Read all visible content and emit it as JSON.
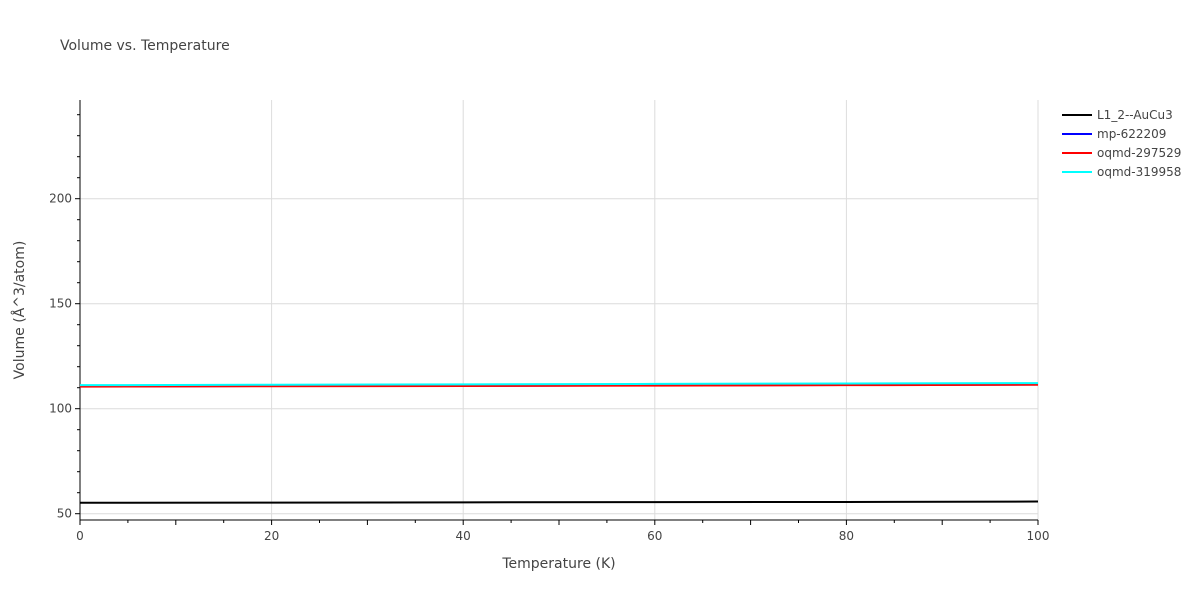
{
  "chart_data": {
    "type": "line",
    "title": "Volume vs. Temperature",
    "xlabel": "Temperature (K)",
    "ylabel": "Volume (Å^3/atom)",
    "xlim": [
      0,
      100
    ],
    "ylim": [
      47,
      247
    ],
    "xticks": [
      0,
      20,
      40,
      60,
      80,
      100
    ],
    "yticks": [
      50,
      100,
      150,
      200
    ],
    "grid": true,
    "legend_position": "top-right",
    "series": [
      {
        "name": "L1_2--AuCu3",
        "color": "#000000",
        "x": [
          0,
          20,
          40,
          60,
          80,
          100
        ],
        "y": [
          55.2,
          55.3,
          55.4,
          55.5,
          55.6,
          55.8
        ]
      },
      {
        "name": "mp-622209",
        "color": "#0000ff",
        "x": [
          0,
          20,
          40,
          60,
          80,
          100
        ],
        "y": [
          110.6,
          110.8,
          110.9,
          111.1,
          111.3,
          111.5
        ]
      },
      {
        "name": "oqmd-297529",
        "color": "#ff0000",
        "x": [
          0,
          20,
          40,
          60,
          80,
          100
        ],
        "y": [
          110.5,
          110.7,
          110.8,
          111.0,
          111.2,
          111.4
        ]
      },
      {
        "name": "oqmd-319958",
        "color": "#00ffff",
        "x": [
          0,
          20,
          40,
          60,
          80,
          100
        ],
        "y": [
          111.2,
          111.4,
          111.6,
          111.8,
          112.0,
          112.2
        ]
      }
    ]
  }
}
